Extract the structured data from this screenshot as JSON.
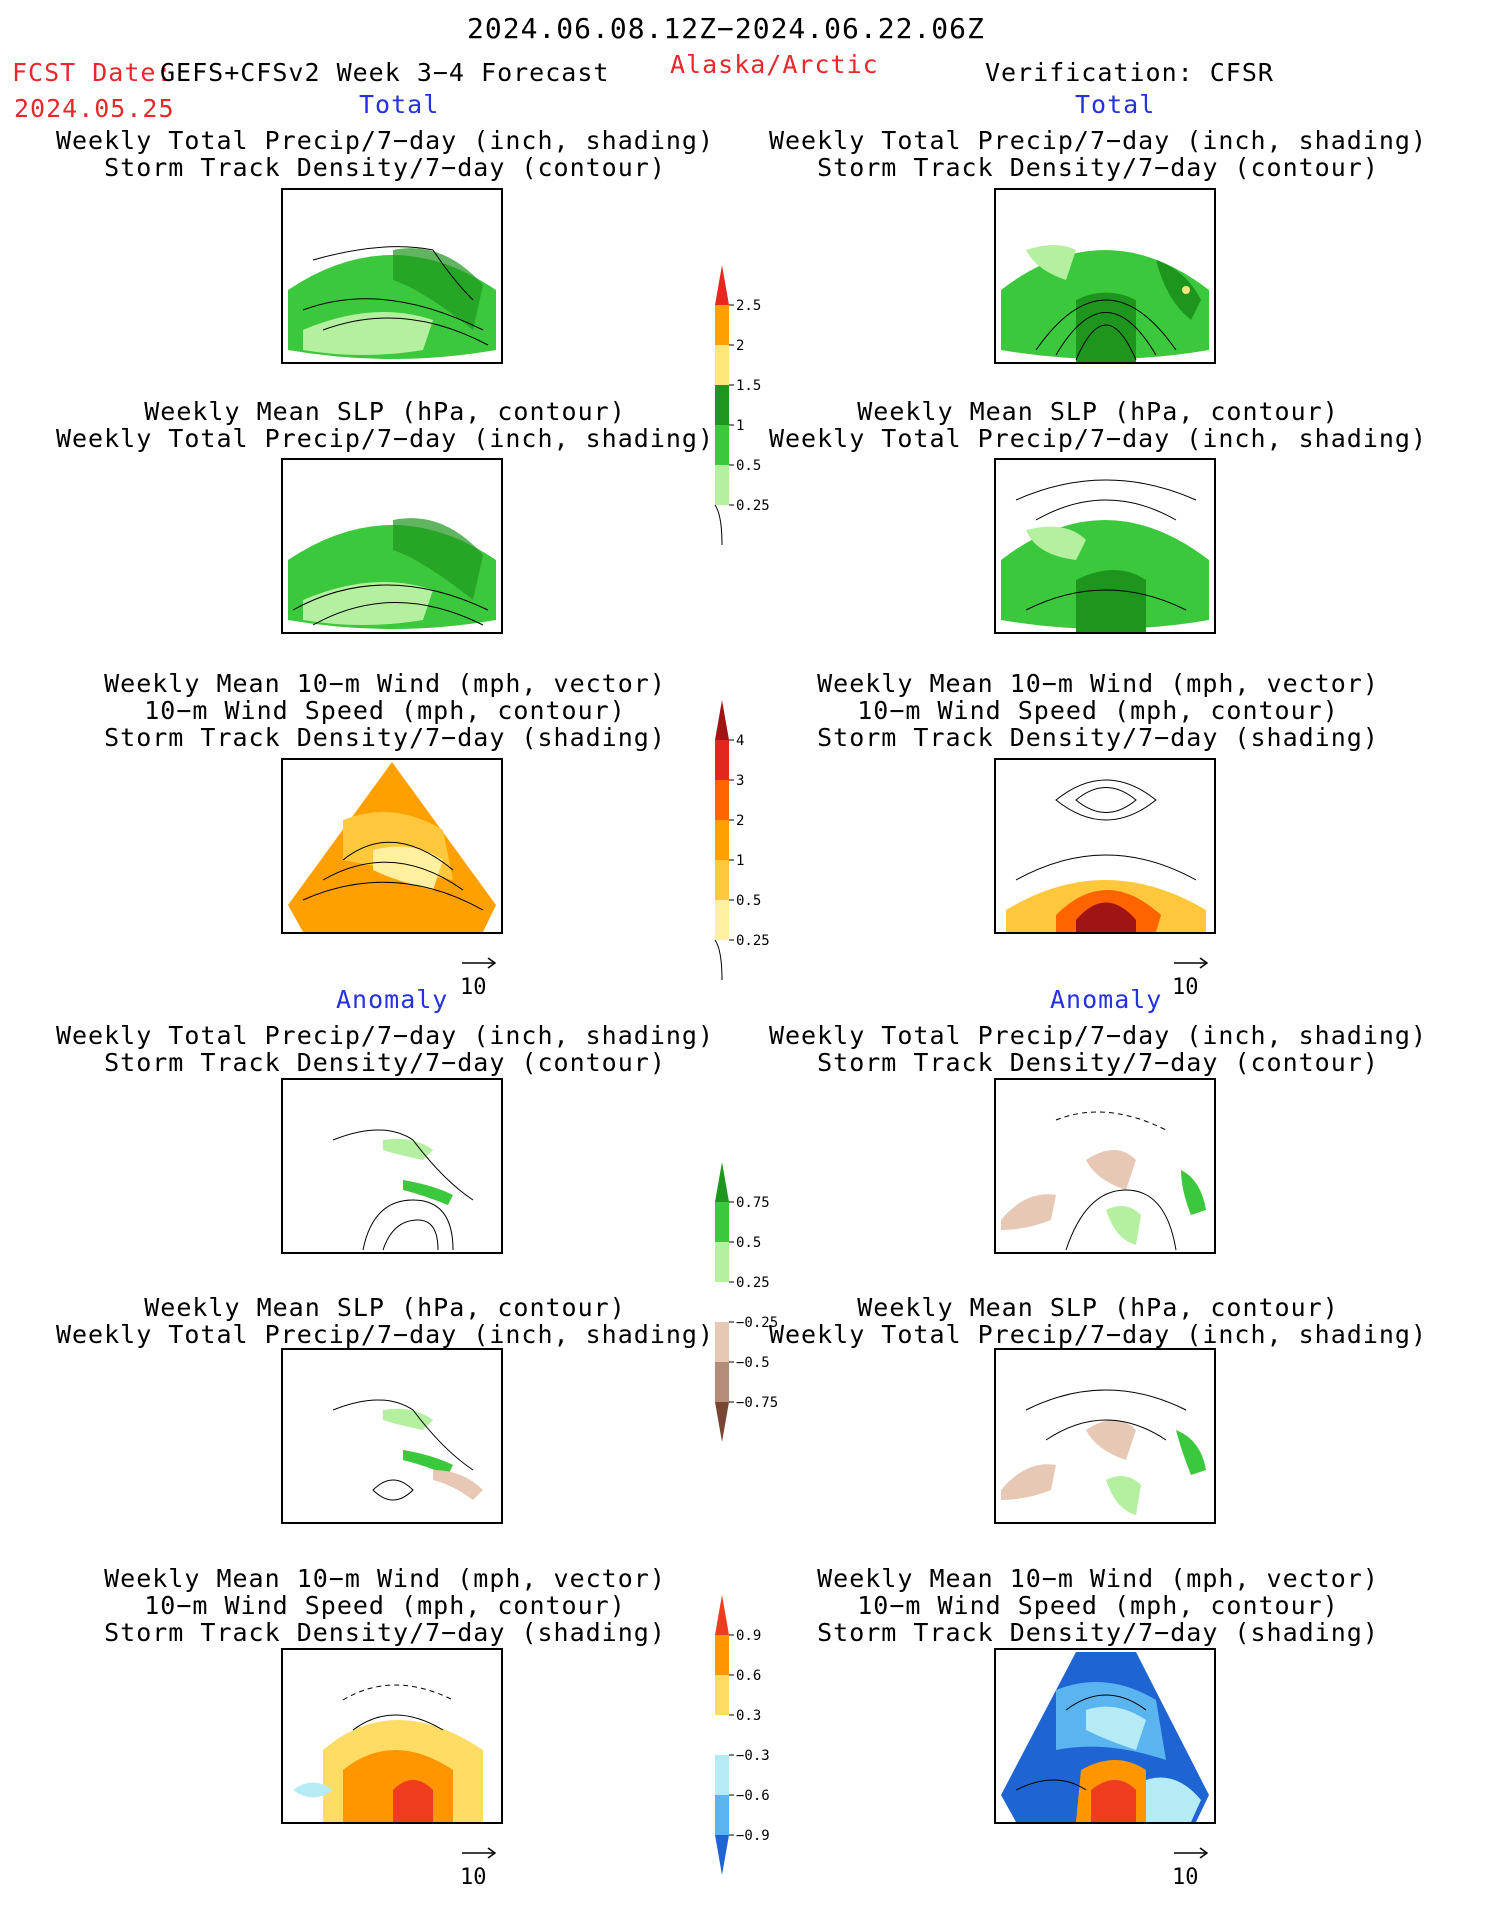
{
  "header": {
    "period": "2024.06.08.12Z−2024.06.22.06Z",
    "fcst_label": "FCST Date:",
    "model": "GEFS+CFSv2 Week 3−4 Forecast",
    "fcst_date": "2024.05.25",
    "region": "Alaska/Arctic",
    "verification": "Verification: CFSR"
  },
  "sections": {
    "total": "Total",
    "anomaly": "Anomaly"
  },
  "panel_titles": {
    "precip_storm": "Weekly Total Precip/7−day (inch, shading)\nStorm Track Density/7−day (contour)",
    "slp_precip": "Weekly Mean SLP (hPa, contour)\nWeekly Total Precip/7−day (inch, shading)",
    "wind_storm": "Weekly Mean 10−m Wind (mph, vector)\n10−m Wind Speed (mph, contour)\nStorm Track Density/7−day (shading)"
  },
  "vector_ref": "10",
  "colorbars": {
    "precip_total": {
      "labels": [
        "2.5",
        "2",
        "1.5",
        "1",
        "0.5",
        "0.25"
      ],
      "colors": [
        "#e8281e",
        "#ffa000",
        "#ffe678",
        "#1e961e",
        "#3cc83c",
        "#b4f0a0"
      ]
    },
    "storm_total": {
      "labels": [
        "4",
        "3",
        "2",
        "1",
        "0.5",
        "0.25"
      ],
      "colors": [
        "#a01414",
        "#e0281e",
        "#ff6400",
        "#ffa000",
        "#ffc83c",
        "#fff0a0"
      ]
    },
    "precip_anom": {
      "labels": [
        "0.75",
        "0.5",
        "0.25",
        "−0.25",
        "−0.5",
        "−0.75"
      ],
      "colors": [
        "#1e961e",
        "#3cc83c",
        "#b4f0a0",
        "#ffffff",
        "#e6c8b4",
        "#b48c78",
        "#784632"
      ]
    },
    "storm_anom": {
      "labels": [
        "0.9",
        "0.6",
        "0.3",
        "−0.3",
        "−0.6",
        "−0.9"
      ],
      "colors": [
        "#f03c1e",
        "#ff9600",
        "#ffdc64",
        "#ffffff",
        "#b4ebf5",
        "#5ab4f0",
        "#1e64d2"
      ]
    }
  }
}
